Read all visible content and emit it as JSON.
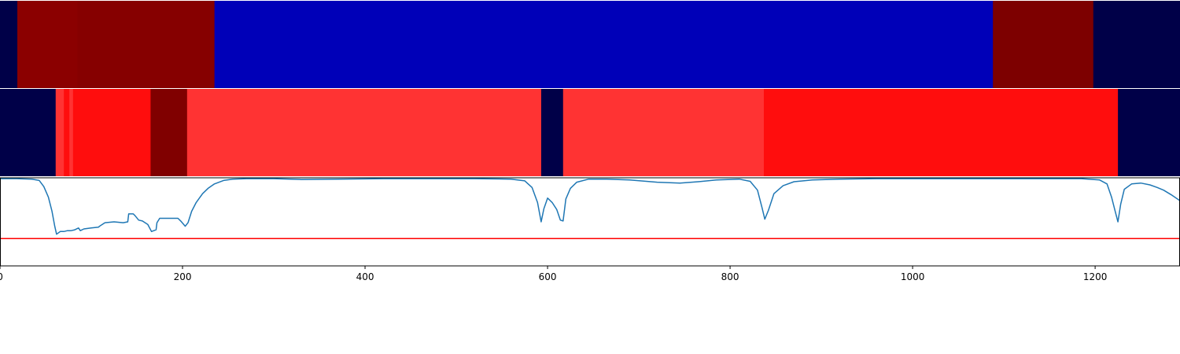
{
  "chart_data": {
    "type": "segmentation-tracks-with-line",
    "x_range": [
      0,
      1293
    ],
    "x_ticks": [
      "0",
      "200",
      "400",
      "600",
      "800",
      "1000",
      "1200"
    ],
    "x_tick_values": [
      0,
      200,
      400,
      600,
      800,
      1000,
      1200
    ],
    "tracks": [
      {
        "segments": [
          {
            "start": 0,
            "end": 19,
            "color": "#000048"
          },
          {
            "start": 19,
            "end": 85,
            "color": "#8b0000"
          },
          {
            "start": 85,
            "end": 235,
            "color": "#860000"
          },
          {
            "start": 235,
            "end": 1088,
            "color": "#0000b8"
          },
          {
            "start": 1088,
            "end": 1198,
            "color": "#7d0000"
          },
          {
            "start": 1198,
            "end": 1293,
            "color": "#000048"
          }
        ]
      },
      {
        "segments": [
          {
            "start": 0,
            "end": 61,
            "color": "#000048"
          },
          {
            "start": 61,
            "end": 70,
            "color": "#ff3333"
          },
          {
            "start": 70,
            "end": 76,
            "color": "#ff0d0d"
          },
          {
            "start": 76,
            "end": 80,
            "color": "#ff3333"
          },
          {
            "start": 80,
            "end": 165,
            "color": "#ff0d0d"
          },
          {
            "start": 165,
            "end": 205,
            "color": "#800000"
          },
          {
            "start": 205,
            "end": 593,
            "color": "#ff3333"
          },
          {
            "start": 593,
            "end": 617,
            "color": "#000048"
          },
          {
            "start": 617,
            "end": 837,
            "color": "#ff3333"
          },
          {
            "start": 837,
            "end": 1225,
            "color": "#ff0d0d"
          },
          {
            "start": 1225,
            "end": 1293,
            "color": "#000048"
          }
        ]
      }
    ],
    "line": {
      "color": "#1f77b4",
      "ylim": [
        0,
        1
      ],
      "points": [
        [
          0,
          0.99
        ],
        [
          18,
          0.99
        ],
        [
          35,
          0.985
        ],
        [
          43,
          0.97
        ],
        [
          48,
          0.9
        ],
        [
          53,
          0.78
        ],
        [
          57,
          0.62
        ],
        [
          60,
          0.45
        ],
        [
          62,
          0.36
        ],
        [
          66,
          0.39
        ],
        [
          70,
          0.39
        ],
        [
          74,
          0.4
        ],
        [
          78,
          0.4
        ],
        [
          82,
          0.41
        ],
        [
          86,
          0.43
        ],
        [
          88,
          0.4
        ],
        [
          92,
          0.42
        ],
        [
          100,
          0.43
        ],
        [
          108,
          0.44
        ],
        [
          109,
          0.45
        ],
        [
          115,
          0.49
        ],
        [
          125,
          0.5
        ],
        [
          135,
          0.49
        ],
        [
          140,
          0.5
        ],
        [
          141,
          0.59
        ],
        [
          146,
          0.59
        ],
        [
          148,
          0.57
        ],
        [
          152,
          0.52
        ],
        [
          156,
          0.51
        ],
        [
          162,
          0.47
        ],
        [
          166,
          0.39
        ],
        [
          171,
          0.41
        ],
        [
          172,
          0.49
        ],
        [
          175,
          0.54
        ],
        [
          185,
          0.54
        ],
        [
          195,
          0.54
        ],
        [
          198,
          0.51
        ],
        [
          203,
          0.45
        ],
        [
          206,
          0.49
        ],
        [
          210,
          0.62
        ],
        [
          215,
          0.72
        ],
        [
          222,
          0.82
        ],
        [
          228,
          0.88
        ],
        [
          235,
          0.93
        ],
        [
          245,
          0.97
        ],
        [
          255,
          0.985
        ],
        [
          270,
          0.99
        ],
        [
          300,
          0.99
        ],
        [
          330,
          0.98
        ],
        [
          370,
          0.985
        ],
        [
          420,
          0.99
        ],
        [
          480,
          0.99
        ],
        [
          520,
          0.99
        ],
        [
          560,
          0.985
        ],
        [
          575,
          0.965
        ],
        [
          583,
          0.89
        ],
        [
          589,
          0.72
        ],
        [
          593,
          0.5
        ],
        [
          596,
          0.65
        ],
        [
          600,
          0.77
        ],
        [
          605,
          0.72
        ],
        [
          610,
          0.64
        ],
        [
          614,
          0.52
        ],
        [
          617,
          0.51
        ],
        [
          620,
          0.76
        ],
        [
          625,
          0.88
        ],
        [
          632,
          0.95
        ],
        [
          645,
          0.985
        ],
        [
          665,
          0.985
        ],
        [
          690,
          0.975
        ],
        [
          720,
          0.95
        ],
        [
          745,
          0.94
        ],
        [
          765,
          0.955
        ],
        [
          785,
          0.975
        ],
        [
          810,
          0.985
        ],
        [
          822,
          0.96
        ],
        [
          830,
          0.86
        ],
        [
          835,
          0.66
        ],
        [
          838,
          0.53
        ],
        [
          842,
          0.63
        ],
        [
          848,
          0.82
        ],
        [
          858,
          0.91
        ],
        [
          870,
          0.955
        ],
        [
          890,
          0.975
        ],
        [
          920,
          0.985
        ],
        [
          960,
          0.99
        ],
        [
          1020,
          0.99
        ],
        [
          1080,
          0.99
        ],
        [
          1140,
          0.99
        ],
        [
          1185,
          0.99
        ],
        [
          1205,
          0.975
        ],
        [
          1213,
          0.93
        ],
        [
          1218,
          0.78
        ],
        [
          1222,
          0.62
        ],
        [
          1225,
          0.5
        ],
        [
          1228,
          0.7
        ],
        [
          1232,
          0.87
        ],
        [
          1240,
          0.93
        ],
        [
          1250,
          0.94
        ],
        [
          1260,
          0.92
        ],
        [
          1268,
          0.89
        ],
        [
          1275,
          0.86
        ],
        [
          1283,
          0.81
        ],
        [
          1293,
          0.74
        ]
      ]
    },
    "threshold": {
      "value": 0.31,
      "color": "#ff0000"
    }
  }
}
